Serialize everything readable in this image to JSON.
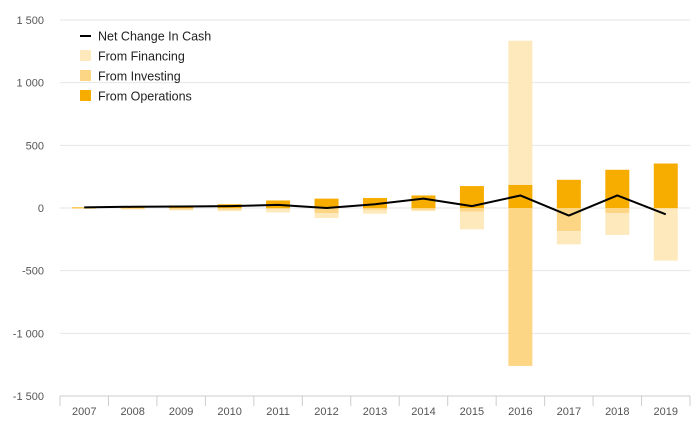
{
  "chart_data": {
    "type": "bar",
    "stacked": true,
    "categories": [
      "2007",
      "2008",
      "2009",
      "2010",
      "2011",
      "2012",
      "2013",
      "2014",
      "2015",
      "2016",
      "2017",
      "2018",
      "2019"
    ],
    "series": [
      {
        "name": "Net Change In Cash",
        "type": "line",
        "color": "#000000",
        "values": [
          5,
          10,
          12,
          15,
          25,
          0,
          30,
          75,
          15,
          100,
          -60,
          100,
          -50
        ]
      },
      {
        "name": "From Financing",
        "type": "bar",
        "color": "#fee9bd",
        "values": [
          0,
          0,
          -5,
          -10,
          -25,
          -40,
          -30,
          -10,
          -140,
          1150,
          -105,
          -175,
          -415
        ]
      },
      {
        "name": "From Investing",
        "type": "bar",
        "color": "#fdd685",
        "values": [
          -5,
          -10,
          -12,
          -15,
          -10,
          -40,
          -15,
          -15,
          -30,
          -1260,
          -185,
          -40,
          -5
        ]
      },
      {
        "name": "From Operations",
        "type": "bar",
        "color": "#f7ac00",
        "values": [
          5,
          15,
          20,
          30,
          60,
          75,
          80,
          100,
          175,
          185,
          225,
          305,
          355
        ]
      }
    ],
    "y_ticks": [
      "1 500",
      "1 000",
      "500",
      "0",
      "-500",
      "-1 000",
      "-1 500"
    ],
    "y_tick_values": [
      1500,
      1000,
      500,
      0,
      -500,
      -1000,
      -1500
    ],
    "ylim": [
      -1500,
      1500
    ],
    "title": "",
    "xlabel": "",
    "ylabel": "",
    "grid": true,
    "legend_position": "top-left"
  }
}
